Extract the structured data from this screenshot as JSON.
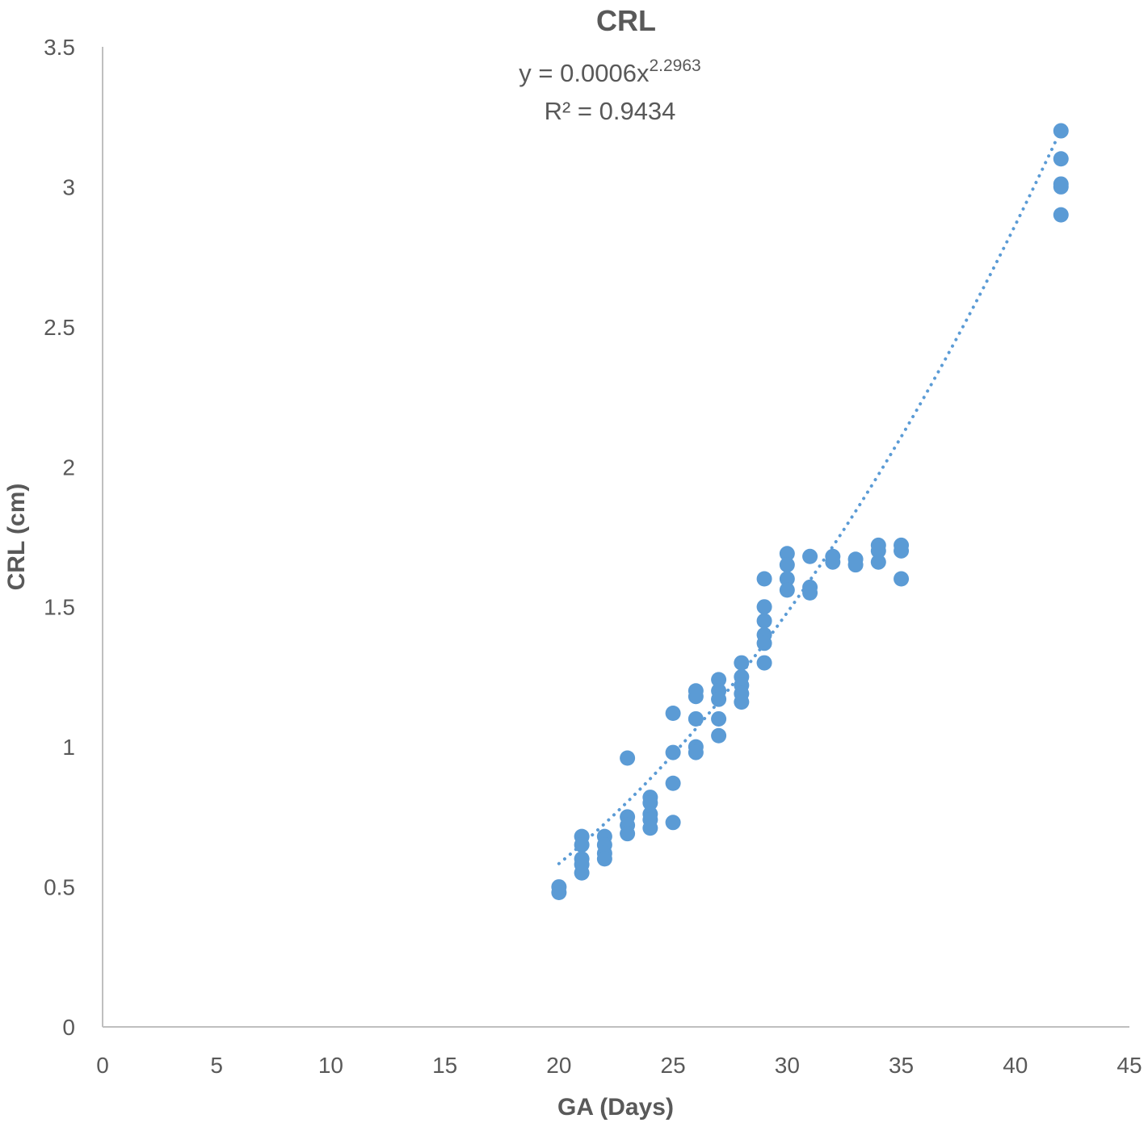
{
  "chart_data": {
    "type": "scatter",
    "title": "CRL",
    "xlabel": "GA (Days)",
    "ylabel": "CRL (cm)",
    "xlim": [
      0,
      45
    ],
    "ylim": [
      0,
      3.5
    ],
    "x_ticks": [
      "0",
      "5",
      "10",
      "15",
      "20",
      "25",
      "30",
      "35",
      "40",
      "45"
    ],
    "y_ticks": [
      "0",
      "0.5",
      "1",
      "1.5",
      "2",
      "2.5",
      "3",
      "3.5"
    ],
    "grid": false,
    "legend": "none",
    "marker_color": "#5B9BD5",
    "trendline": {
      "type": "power",
      "coefficient": 0.0006,
      "exponent": 2.2963,
      "x_range": [
        20,
        42
      ],
      "style": "dotted",
      "equation_prefix": "y = 0.0006x",
      "equation_exponent": "2.2963",
      "r_squared_label": "R² = 0.9434"
    },
    "series": [
      {
        "points": [
          [
            20,
            0.5
          ],
          [
            20,
            0.48
          ],
          [
            21,
            0.68
          ],
          [
            21,
            0.65
          ],
          [
            21,
            0.6
          ],
          [
            21,
            0.58
          ],
          [
            21,
            0.55
          ],
          [
            22,
            0.68
          ],
          [
            22,
            0.65
          ],
          [
            22,
            0.62
          ],
          [
            22,
            0.6
          ],
          [
            23,
            0.96
          ],
          [
            23,
            0.75
          ],
          [
            23,
            0.72
          ],
          [
            23,
            0.69
          ],
          [
            24,
            0.82
          ],
          [
            24,
            0.8
          ],
          [
            24,
            0.76
          ],
          [
            24,
            0.74
          ],
          [
            24,
            0.71
          ],
          [
            25,
            1.12
          ],
          [
            25,
            0.98
          ],
          [
            25,
            0.87
          ],
          [
            25,
            0.73
          ],
          [
            26,
            1.2
          ],
          [
            26,
            1.18
          ],
          [
            26,
            1.1
          ],
          [
            26,
            1.0
          ],
          [
            26,
            0.98
          ],
          [
            27,
            1.24
          ],
          [
            27,
            1.2
          ],
          [
            27,
            1.17
          ],
          [
            27,
            1.1
          ],
          [
            27,
            1.04
          ],
          [
            28,
            1.3
          ],
          [
            28,
            1.25
          ],
          [
            28,
            1.22
          ],
          [
            28,
            1.19
          ],
          [
            28,
            1.16
          ],
          [
            29,
            1.6
          ],
          [
            29,
            1.5
          ],
          [
            29,
            1.45
          ],
          [
            29,
            1.4
          ],
          [
            29,
            1.37
          ],
          [
            29,
            1.3
          ],
          [
            30,
            1.69
          ],
          [
            30,
            1.65
          ],
          [
            30,
            1.6
          ],
          [
            30,
            1.56
          ],
          [
            31,
            1.68
          ],
          [
            31,
            1.57
          ],
          [
            31,
            1.55
          ],
          [
            32,
            1.68
          ],
          [
            32,
            1.66
          ],
          [
            33,
            1.67
          ],
          [
            33,
            1.65
          ],
          [
            34,
            1.72
          ],
          [
            34,
            1.7
          ],
          [
            34,
            1.66
          ],
          [
            35,
            1.72
          ],
          [
            35,
            1.7
          ],
          [
            35,
            1.6
          ],
          [
            42,
            3.2
          ],
          [
            42,
            3.1
          ],
          [
            42,
            3.01
          ],
          [
            42,
            3.0
          ],
          [
            42,
            2.9
          ]
        ]
      }
    ]
  }
}
